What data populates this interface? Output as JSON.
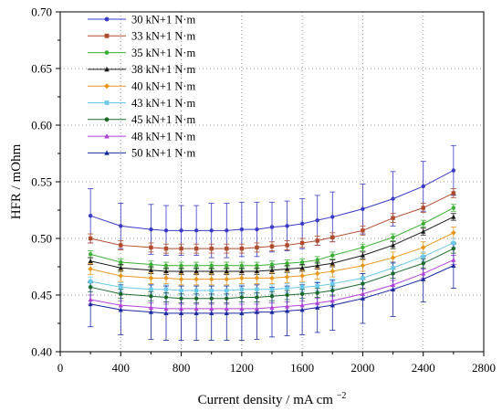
{
  "chart_data": {
    "type": "line",
    "xlabel": "Current density / mA cm",
    "xlabel_superscript": "−2",
    "ylabel": "HFR / mOhm",
    "xlim": [
      0,
      2800
    ],
    "ylim": [
      0.4,
      0.7
    ],
    "x_ticks": [
      0,
      400,
      800,
      1200,
      1600,
      2000,
      2400,
      2800
    ],
    "y_ticks": [
      0.4,
      0.45,
      0.5,
      0.55,
      0.6,
      0.65,
      0.7
    ],
    "x_tick_labels": [
      "0",
      "400",
      "800",
      "1200",
      "1600",
      "2000",
      "2400",
      "2800"
    ],
    "y_tick_labels": [
      "0.40",
      "0.45",
      "0.50",
      "0.55",
      "0.60",
      "0.65",
      "0.70"
    ],
    "grid": "dotted",
    "legend_position": "top-left",
    "x": [
      200,
      400,
      600,
      700,
      800,
      900,
      1000,
      1100,
      1200,
      1300,
      1400,
      1500,
      1600,
      1700,
      1800,
      2000,
      2200,
      2400,
      2600
    ],
    "series": [
      {
        "name": "30 kN+1 N·m",
        "color": "#3a3ac8",
        "marker": "circle",
        "values": [
          0.52,
          0.511,
          0.508,
          0.507,
          0.507,
          0.507,
          0.507,
          0.507,
          0.508,
          0.508,
          0.51,
          0.511,
          0.513,
          0.516,
          0.519,
          0.526,
          0.535,
          0.546,
          0.56
        ],
        "error": [
          0.024,
          0.02,
          0.022,
          0.022,
          0.022,
          0.022,
          0.024,
          0.024,
          0.024,
          0.024,
          0.022,
          0.022,
          0.022,
          0.022,
          0.022,
          0.022,
          0.024,
          0.022,
          0.022
        ]
      },
      {
        "name": "33 kN+1 N·m",
        "color": "#b04a2c",
        "marker": "square",
        "values": [
          0.5,
          0.494,
          0.492,
          0.491,
          0.491,
          0.491,
          0.491,
          0.491,
          0.491,
          0.492,
          0.493,
          0.494,
          0.496,
          0.498,
          0.501,
          0.507,
          0.518,
          0.527,
          0.54
        ],
        "error": [
          0.004,
          0.004,
          0.004,
          0.004,
          0.004,
          0.004,
          0.004,
          0.004,
          0.004,
          0.004,
          0.004,
          0.004,
          0.004,
          0.004,
          0.004,
          0.004,
          0.004,
          0.004,
          0.004
        ]
      },
      {
        "name": "35 kN+1 N·m",
        "color": "#3cb034",
        "marker": "circle",
        "values": [
          0.486,
          0.479,
          0.477,
          0.476,
          0.476,
          0.476,
          0.476,
          0.476,
          0.476,
          0.476,
          0.477,
          0.478,
          0.479,
          0.481,
          0.485,
          0.492,
          0.501,
          0.513,
          0.527
        ],
        "error": [
          0.003,
          0.003,
          0.003,
          0.003,
          0.003,
          0.003,
          0.003,
          0.003,
          0.003,
          0.003,
          0.003,
          0.003,
          0.003,
          0.003,
          0.003,
          0.003,
          0.003,
          0.003,
          0.003
        ]
      },
      {
        "name": "38 kN+1 N·m",
        "color": "#1a1a1a",
        "marker": "triangle",
        "values": [
          0.48,
          0.474,
          0.472,
          0.471,
          0.471,
          0.471,
          0.471,
          0.471,
          0.471,
          0.471,
          0.472,
          0.473,
          0.474,
          0.476,
          0.478,
          0.485,
          0.494,
          0.506,
          0.519
        ],
        "error": [
          0.003,
          0.003,
          0.003,
          0.003,
          0.003,
          0.003,
          0.003,
          0.003,
          0.003,
          0.003,
          0.003,
          0.003,
          0.003,
          0.003,
          0.003,
          0.003,
          0.003,
          0.003,
          0.003
        ]
      },
      {
        "name": "40 kN+1 N·m",
        "color": "#e8961c",
        "marker": "diamond",
        "values": [
          0.473,
          0.467,
          0.465,
          0.465,
          0.464,
          0.464,
          0.464,
          0.464,
          0.465,
          0.465,
          0.465,
          0.466,
          0.467,
          0.469,
          0.471,
          0.476,
          0.483,
          0.492,
          0.505
        ],
        "error": [
          0.005,
          0.005,
          0.005,
          0.005,
          0.005,
          0.005,
          0.005,
          0.005,
          0.005,
          0.005,
          0.005,
          0.005,
          0.005,
          0.005,
          0.005,
          0.005,
          0.005,
          0.005,
          0.005
        ]
      },
      {
        "name": "43 kN+1 N·m",
        "color": "#6ac8e8",
        "marker": "square",
        "values": [
          0.462,
          0.457,
          0.455,
          0.455,
          0.454,
          0.454,
          0.454,
          0.454,
          0.455,
          0.455,
          0.455,
          0.456,
          0.457,
          0.458,
          0.46,
          0.465,
          0.474,
          0.484,
          0.496
        ],
        "error": [
          0.004,
          0.004,
          0.004,
          0.004,
          0.004,
          0.004,
          0.004,
          0.004,
          0.004,
          0.004,
          0.004,
          0.004,
          0.004,
          0.004,
          0.004,
          0.004,
          0.004,
          0.004,
          0.004
        ]
      },
      {
        "name": "45 kN+1 N·m",
        "color": "#1a6a2a",
        "marker": "circle",
        "values": [
          0.457,
          0.451,
          0.449,
          0.448,
          0.447,
          0.447,
          0.447,
          0.447,
          0.448,
          0.448,
          0.449,
          0.45,
          0.451,
          0.452,
          0.454,
          0.46,
          0.469,
          0.478,
          0.491
        ],
        "error": [
          0.004,
          0.004,
          0.004,
          0.004,
          0.004,
          0.004,
          0.004,
          0.004,
          0.004,
          0.004,
          0.004,
          0.004,
          0.004,
          0.004,
          0.004,
          0.004,
          0.004,
          0.004,
          0.004
        ]
      },
      {
        "name": "48 kN+1 N·m",
        "color": "#b040d8",
        "marker": "triangle",
        "values": [
          0.446,
          0.441,
          0.439,
          0.438,
          0.438,
          0.438,
          0.438,
          0.438,
          0.438,
          0.438,
          0.439,
          0.44,
          0.441,
          0.443,
          0.445,
          0.451,
          0.459,
          0.469,
          0.481
        ],
        "error": [
          0.004,
          0.004,
          0.004,
          0.004,
          0.004,
          0.004,
          0.004,
          0.004,
          0.004,
          0.004,
          0.004,
          0.004,
          0.004,
          0.004,
          0.004,
          0.004,
          0.004,
          0.004,
          0.004
        ]
      },
      {
        "name": "50 kN+1 N·m",
        "color": "#1a2aa0",
        "marker": "triangle",
        "values": [
          0.442,
          0.437,
          0.435,
          0.434,
          0.434,
          0.434,
          0.434,
          0.434,
          0.434,
          0.435,
          0.435,
          0.436,
          0.437,
          0.439,
          0.441,
          0.447,
          0.455,
          0.464,
          0.476
        ],
        "error": [
          0.02,
          0.022,
          0.024,
          0.024,
          0.024,
          0.024,
          0.024,
          0.024,
          0.024,
          0.024,
          0.022,
          0.022,
          0.022,
          0.022,
          0.022,
          0.022,
          0.024,
          0.02,
          0.02
        ]
      }
    ]
  }
}
